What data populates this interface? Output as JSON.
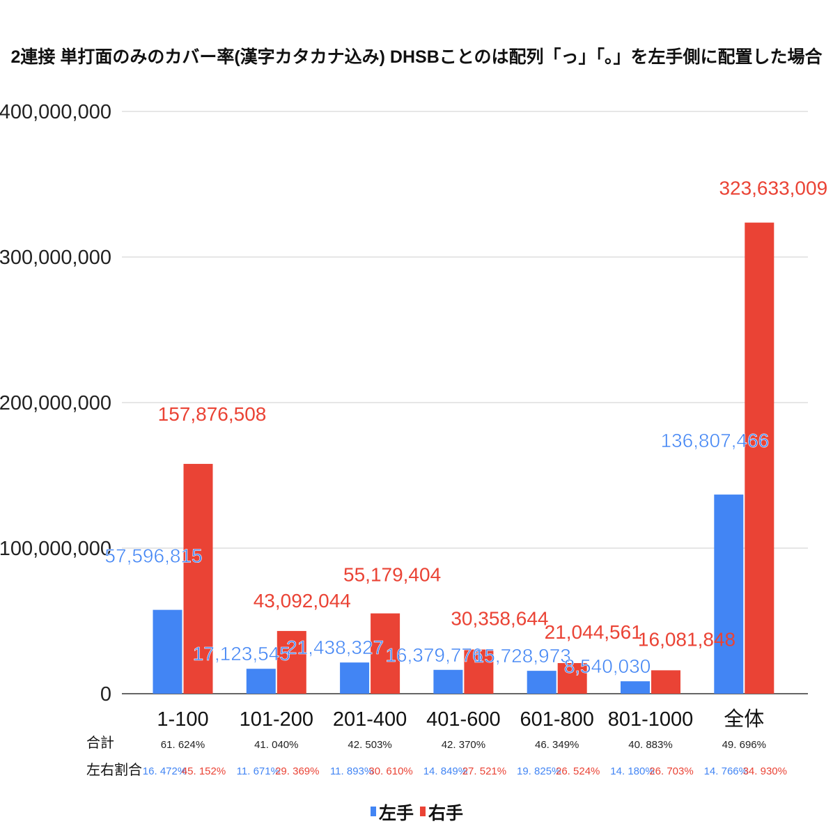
{
  "chart_data": {
    "type": "bar",
    "title": "2連接 単打面のみのカバー率(漢字カタカナ込み) DHSBことのは配列「っ」「。」を左手側に配置した場合",
    "categories": [
      "1-100",
      "101-200",
      "201-400",
      "401-600",
      "601-800",
      "801-1000",
      "全体"
    ],
    "series": [
      {
        "name": "左手",
        "color": "#4285f4",
        "values": [
          57596815,
          17123545,
          21438327,
          16379776,
          15728973,
          8540030,
          136807466
        ],
        "labels": [
          "57,596,815",
          "17,123,545",
          "21,438,327",
          "16,379,776",
          "15,728,973",
          "8,540,030",
          "136,807,466"
        ]
      },
      {
        "name": "右手",
        "color": "#ea4335",
        "values": [
          157876508,
          43092044,
          55179404,
          30358644,
          21044561,
          16081848,
          323633009
        ],
        "labels": [
          "157,876,508",
          "43,092,044",
          "55,179,404",
          "30,358,644",
          "21,044,561",
          "16,081,848",
          "323,633,009"
        ]
      }
    ],
    "ylim": [
      0,
      400000000
    ],
    "yticks": [
      0,
      100000000,
      200000000,
      300000000,
      400000000
    ],
    "ytick_labels": [
      "0",
      "100,000,000",
      "200,000,000",
      "300,000,000",
      "400,000,000"
    ],
    "grid": true,
    "legend_position": "bottom",
    "row_labels": {
      "total": "合計",
      "ratio": "左右割合"
    },
    "totals": [
      "61. 624%",
      "41. 040%",
      "42. 503%",
      "42. 370%",
      "46. 349%",
      "40. 883%",
      "49. 696%"
    ],
    "left_ratios": [
      "16. 472%",
      "11. 671%",
      "11. 893%",
      "14. 849%",
      "19. 825%",
      "14. 180%",
      "14. 766%"
    ],
    "right_ratios": [
      "45. 152%",
      "29. 369%",
      "30. 610%",
      "27. 521%",
      "26. 524%",
      "26. 703%",
      "34. 930%"
    ]
  }
}
